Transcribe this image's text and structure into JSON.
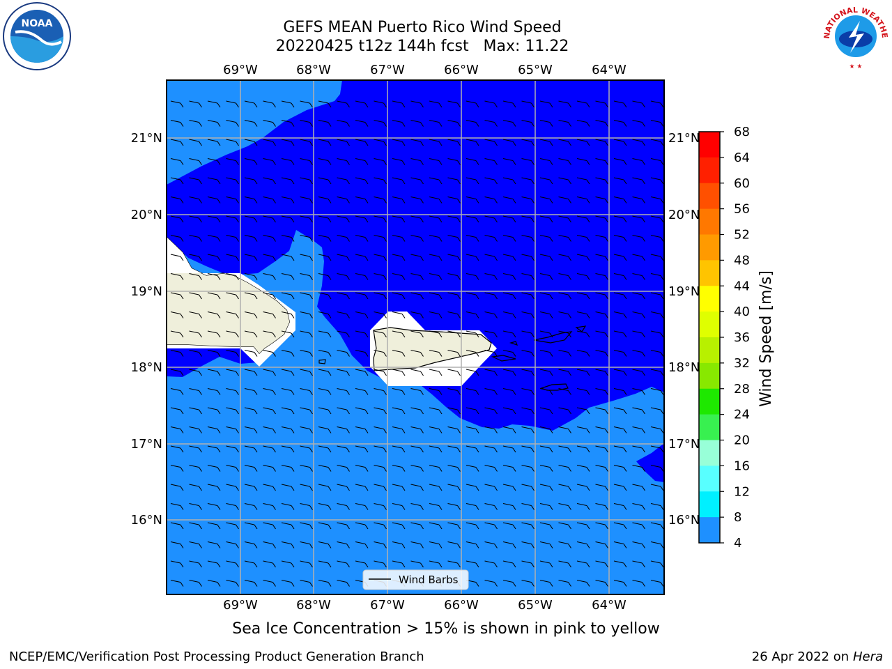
{
  "title": {
    "line1": "GEFS MEAN Puerto Rico Wind Speed",
    "line2": "20220425 t12z 144h fcst   Max: 11.22"
  },
  "map": {
    "lon_labels": [
      "69°W",
      "68°W",
      "67°W",
      "66°W",
      "65°W",
      "64°W"
    ],
    "lat_labels": [
      "21°N",
      "20°N",
      "19°N",
      "18°N",
      "17°N",
      "16°N"
    ],
    "lon_range": [
      -70.0,
      -63.25
    ],
    "lat_range": [
      15.0,
      21.75
    ],
    "legend_label": "Wind Barbs",
    "fill_colors": {
      "low": "#0000ff",
      "mid": "#1e90ff",
      "land": "#efefdb"
    }
  },
  "colorbar": {
    "label": "Wind Speed [m/s]",
    "ticks": [
      "68",
      "64",
      "60",
      "56",
      "52",
      "48",
      "44",
      "40",
      "36",
      "32",
      "28",
      "24",
      "20",
      "16",
      "12",
      "8",
      "4"
    ],
    "colors": [
      "#ff0000",
      "#ff2000",
      "#ff5000",
      "#ff7800",
      "#ff9a00",
      "#ffc400",
      "#ffff00",
      "#dfff00",
      "#b8f000",
      "#88e800",
      "#1ee800",
      "#38f050",
      "#98ffd8",
      "#58ffff",
      "#00f0ff",
      "#1e90ff",
      "#0000ff"
    ]
  },
  "logos": {
    "left": "NOAA",
    "right": "NATIONAL WEATHER SERVICE"
  },
  "caption": "Sea Ice Concentration > 15% is shown in pink to yellow",
  "footer": {
    "left": "NCEP/EMC/Verification Post Processing Product Generation Branch",
    "right_date": "26 Apr 2022 on ",
    "right_machine": "Hera"
  }
}
